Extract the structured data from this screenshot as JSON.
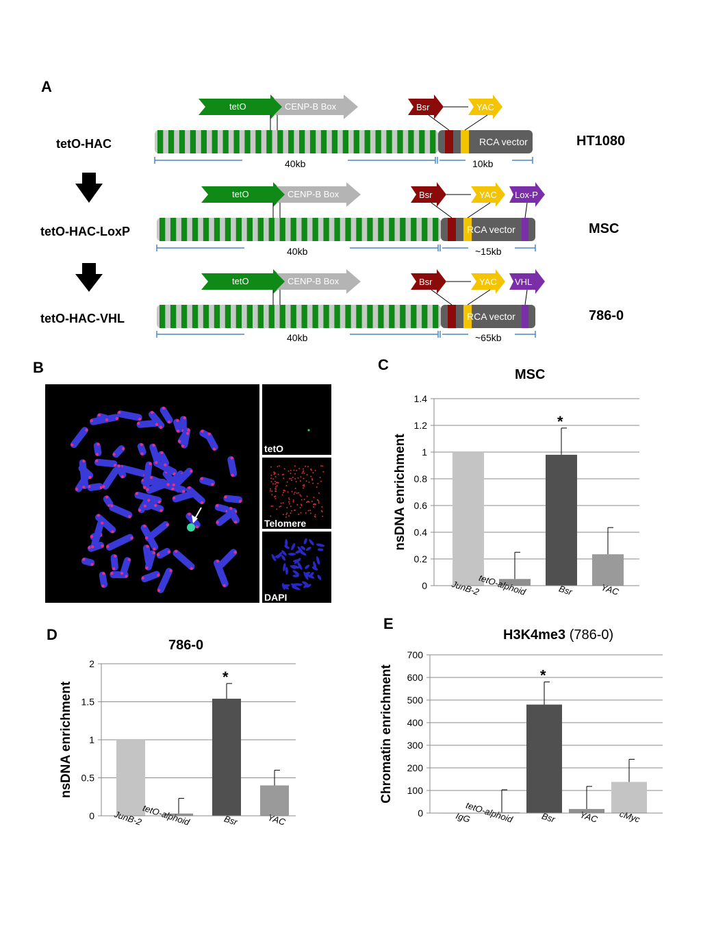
{
  "panel_letters": {
    "a": "A",
    "b": "B",
    "c": "C",
    "d": "D",
    "e": "E"
  },
  "panel_a": {
    "constructs": [
      {
        "name": "tetO-HAC",
        "cell_line": "HT1080",
        "left_size": "40kb",
        "right_size": "10kb",
        "vector_label": "RCA vector",
        "extra_label": ""
      },
      {
        "name": "tetO-HAC-LoxP",
        "cell_line": "MSC",
        "left_size": "40kb",
        "right_size": "~15kb",
        "vector_label": "RCA vector",
        "extra_label": "Lox-P"
      },
      {
        "name": "tetO-HAC-VHL",
        "cell_line": "786-0",
        "left_size": "40kb",
        "right_size": "~65kb",
        "vector_label": "RCA vector",
        "extra_label": "VHL"
      }
    ],
    "arrow_labels": {
      "teto": "tetO",
      "cenpb": "CENP-B Box",
      "bsr": "Bsr",
      "yac": "YAC"
    },
    "colors": {
      "green": "#0f8a16",
      "grey": "#c8c8c8",
      "dark": "#5e5e5e",
      "bsr": "#8b0a0a",
      "yac": "#f5c400",
      "purple": "#7a2fa8",
      "scale": "#4a86c8"
    }
  },
  "panel_b": {
    "main_label": "",
    "inset_labels": [
      "tetO",
      "Telomere",
      "DAPI"
    ]
  },
  "chart_data": [
    {
      "type": "bar",
      "panel": "C",
      "title": "MSC",
      "title_suffix": "",
      "ylabel": "nsDNA enrichment",
      "xlabel": "",
      "categories": [
        "JunB-2",
        "tetO-alphoid",
        "Bsr",
        "YAC"
      ],
      "values": [
        1.0,
        0.05,
        0.98,
        0.235
      ],
      "errors": [
        0,
        0.2,
        0.2,
        0.2
      ],
      "significant": [
        false,
        false,
        true,
        false
      ],
      "bar_colors": [
        "#c4c4c4",
        "#8f8f8f",
        "#505050",
        "#9a9a9a"
      ],
      "ylim": [
        0,
        1.4
      ],
      "ticks": [
        0,
        0.2,
        0.4,
        0.6,
        0.8,
        1,
        1.2,
        1.4
      ],
      "tick_labels": [
        "0",
        "0.2",
        "0.4",
        "0.6",
        "0.8",
        "1",
        "1.2",
        "1.4"
      ],
      "grid": true,
      "significance_marker": "*"
    },
    {
      "type": "bar",
      "panel": "D",
      "title": "786-0",
      "title_suffix": "",
      "ylabel": "nsDNA enrichment",
      "xlabel": "",
      "categories": [
        "JunB-2",
        "tetO-alphoid",
        "Bsr",
        "YAC"
      ],
      "values": [
        1.0,
        0.03,
        1.54,
        0.4
      ],
      "errors": [
        0,
        0.2,
        0.2,
        0.2
      ],
      "significant": [
        false,
        false,
        true,
        false
      ],
      "bar_colors": [
        "#c4c4c4",
        "#8f8f8f",
        "#505050",
        "#9a9a9a"
      ],
      "ylim": [
        0,
        2
      ],
      "ticks": [
        0,
        0.5,
        1,
        1.5,
        2
      ],
      "tick_labels": [
        "0",
        "0.5",
        "1",
        "1.5",
        "2"
      ],
      "grid": true,
      "significance_marker": "*"
    },
    {
      "type": "bar",
      "panel": "E",
      "title": "H3K4me3",
      "title_suffix": " (786-0)",
      "ylabel": "Chromatin enrichment",
      "xlabel": "",
      "categories": [
        "IgG",
        "tetO-alphoid",
        "Bsr",
        "YAC",
        "cMyc"
      ],
      "values": [
        1,
        3,
        480,
        18,
        138
      ],
      "errors": [
        0,
        100,
        100,
        100,
        100
      ],
      "significant": [
        false,
        false,
        true,
        false,
        false
      ],
      "bar_colors": [
        "#c4c4c4",
        "#8f8f8f",
        "#505050",
        "#8f8f8f",
        "#c4c4c4"
      ],
      "ylim": [
        0,
        700
      ],
      "ticks": [
        0,
        100,
        200,
        300,
        400,
        500,
        600,
        700
      ],
      "tick_labels": [
        "0",
        "100",
        "200",
        "300",
        "400",
        "500",
        "600",
        "700"
      ],
      "grid": true,
      "significance_marker": "*"
    }
  ]
}
